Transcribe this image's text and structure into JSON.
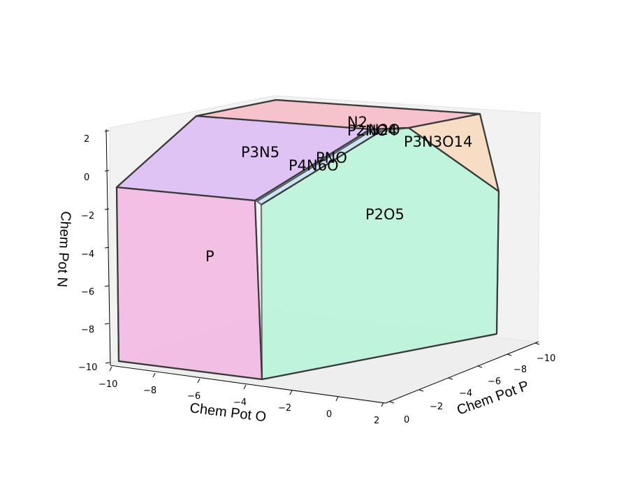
{
  "chart_data": {
    "type": "3d-polytope",
    "title": "",
    "axes": {
      "x": {
        "label": "Chem Pot P",
        "ticks": [
          "0",
          "−2",
          "−4",
          "−6",
          "−8",
          "−10"
        ]
      },
      "y": {
        "label": "Chem Pot O",
        "ticks": [
          "−10",
          "−8",
          "−6",
          "−4",
          "−2",
          "0",
          "2"
        ]
      },
      "z": {
        "label": "Chem Pot N",
        "ticks": [
          "2",
          "0",
          "−2",
          "−4",
          "−6",
          "−8",
          "−10"
        ]
      }
    },
    "regions": [
      {
        "name": "P",
        "color": "#f0b4e0"
      },
      {
        "name": "P3N5",
        "color": "#dab8f5"
      },
      {
        "name": "N2",
        "color": "#f7b8c4"
      },
      {
        "name": "P3N3O14",
        "color": "#f8d8b8"
      },
      {
        "name": "P2O5",
        "color": "#b6f4d8"
      },
      {
        "name": "PNO",
        "color": "#c4e0f4"
      },
      {
        "name": "P4N6O",
        "color": "#a8dcf0"
      },
      {
        "name": "P2NO4",
        "color": "#e8c0d8"
      },
      {
        "name": "N2O",
        "color": "#f0c0c8"
      }
    ]
  }
}
